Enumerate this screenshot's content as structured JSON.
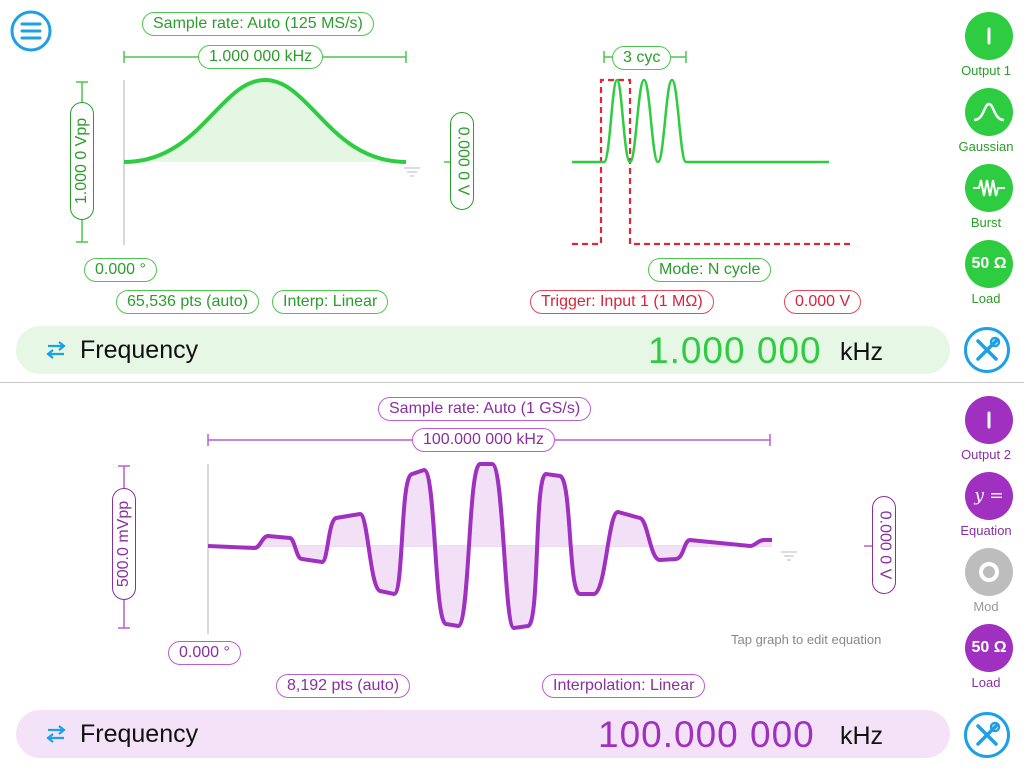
{
  "menu": {
    "icon": "hamburger-menu-icon"
  },
  "channel1": {
    "sample_rate": "Sample rate: Auto (125 MS/s)",
    "period_label": "1.000 000 kHz",
    "amplitude": "1.000 0 Vpp",
    "offset": "0.000 0 V",
    "phase": "0.000 °",
    "points": "65,536 pts (auto)",
    "interp": "Interp: Linear",
    "burst_cycles": "3 cyc",
    "mode": "Mode: N cycle",
    "trigger": "Trigger: Input 1",
    "trigger_imp": "(1 MΩ)",
    "trigger_level": "0.000 V",
    "frequency_label": "Frequency",
    "frequency_value": "1.000 000",
    "frequency_unit": "kHz",
    "side": [
      {
        "label": "Output 1",
        "icon": "power-icon"
      },
      {
        "label": "Gaussian",
        "icon": "gaussian-wave-icon"
      },
      {
        "label": "Burst",
        "icon": "burst-wave-icon"
      },
      {
        "label": "Load",
        "icon": "load-ohm-icon",
        "text": "50 Ω"
      }
    ],
    "color": "#2ecc40"
  },
  "channel2": {
    "sample_rate": "Sample rate: Auto (1 GS/s)",
    "period_label": "100.000 000 kHz",
    "amplitude": "500.0 mVpp",
    "offset": "0.000 0 V",
    "phase": "0.000 °",
    "points": "8,192 pts (auto)",
    "interp": "Interpolation: Linear",
    "hint": "Tap graph to edit equation",
    "frequency_label": "Frequency",
    "frequency_value": "100.000 000",
    "frequency_unit": "kHz",
    "side": [
      {
        "label": "Output 2",
        "icon": "power-icon"
      },
      {
        "label": "Equation",
        "icon": "equation-icon",
        "text": "y ="
      },
      {
        "label": "Mod",
        "icon": "modulation-icon"
      },
      {
        "label": "Load",
        "icon": "load-ohm-icon",
        "text": "50 Ω"
      }
    ],
    "color": "#a030c0"
  },
  "tools": {
    "icon": "tools-icon"
  }
}
